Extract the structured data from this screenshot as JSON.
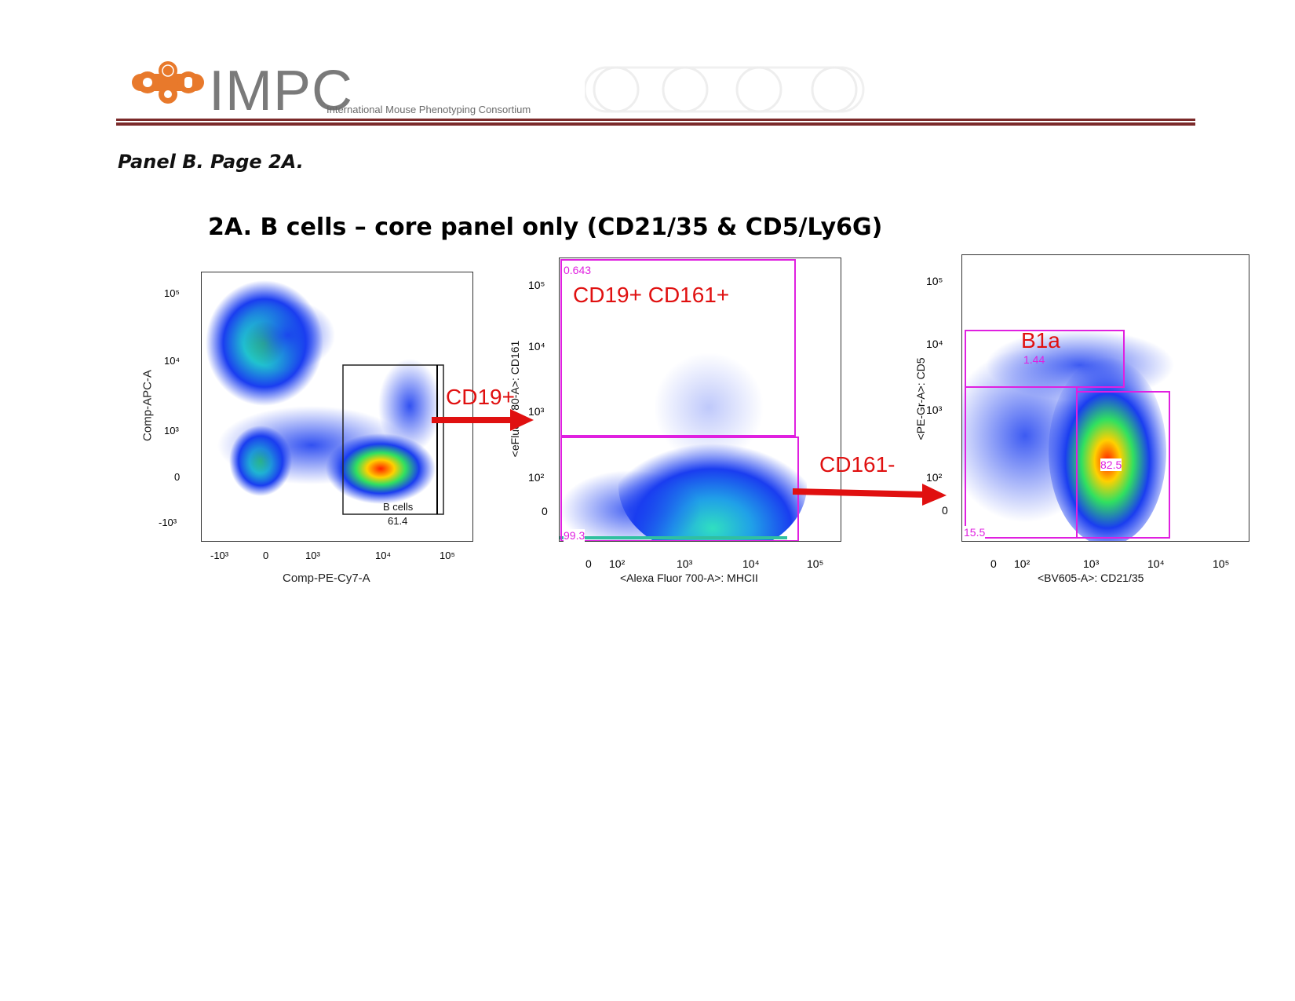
{
  "header": {
    "logo_text": "IMPC",
    "logo_subtitle": "International Mouse Phenotyping Consortium",
    "colors": {
      "logo_orange": "#e8792b",
      "logo_gray": "#7a7a7a",
      "rule": "#7b2a2a"
    }
  },
  "page_label": "Panel B. Page 2A.",
  "section_title": "2A. B cells – core panel only (CD21/35 & CD5/Ly6G)",
  "plots": [
    {
      "xlabel": "Comp-PE-Cy7-A",
      "ylabel": "Comp-APC-A",
      "xticks": [
        "-10³",
        "0",
        "10³",
        "10⁴",
        "10⁵"
      ],
      "yticks": [
        "10⁵",
        "10⁴",
        "10³",
        "0",
        "-10³"
      ],
      "gate": {
        "name": "B cells",
        "value": "61.4"
      }
    },
    {
      "xlabel": "<Alexa Fluor 700-A>: MHCII",
      "ylabel": "<eFluor 780-A>: CD161",
      "xticks": [
        "0",
        "10²",
        "10³",
        "10⁴",
        "10⁵"
      ],
      "yticks": [
        "10⁵",
        "10⁴",
        "10³",
        "10²",
        "0"
      ],
      "gates": [
        {
          "value": "0.643"
        },
        {
          "value": "99.3"
        }
      ],
      "annotation": "CD19+ CD161+"
    },
    {
      "xlabel": "<BV605-A>: CD21/35",
      "ylabel": "<PE-Gr-A>: CD5",
      "xticks": [
        "0",
        "10²",
        "10³",
        "10⁴",
        "10⁵"
      ],
      "yticks": [
        "10⁵",
        "10⁴",
        "10³",
        "10²",
        "0"
      ],
      "gates": [
        {
          "name": "B1a",
          "value": "1.44"
        },
        {
          "value": "82.5"
        },
        {
          "value": "15.5"
        }
      ]
    }
  ],
  "arrows": {
    "first": "CD19+",
    "second": "CD161-"
  },
  "colors": {
    "gate_magenta": "#e020e0",
    "annotation_red": "#e01010"
  }
}
